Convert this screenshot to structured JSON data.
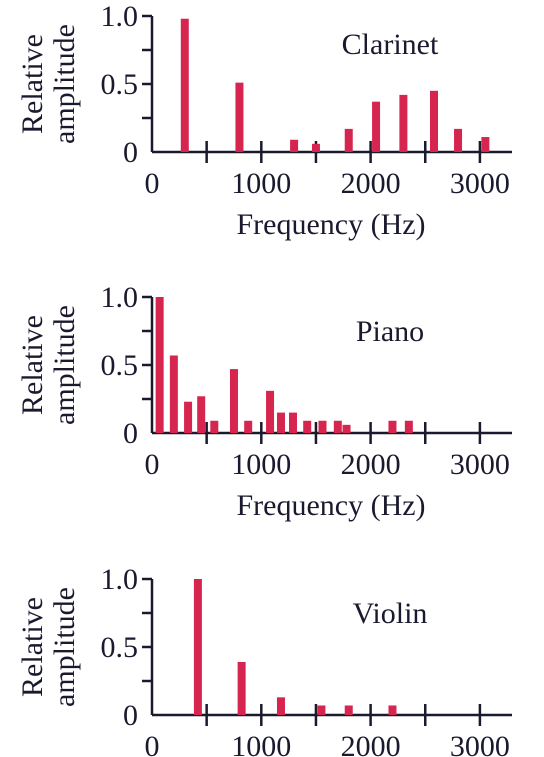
{
  "colors": {
    "bar": "#d6264f",
    "axis": "#1a1a2e"
  },
  "chart_data": [
    {
      "type": "bar",
      "title": "Clarinet",
      "ylabel_line1": "Relative",
      "ylabel_line2": "amplitude",
      "xlabel": "Frequency (Hz)",
      "xlim": [
        0,
        3300
      ],
      "ylim": [
        0,
        1.0
      ],
      "x_ticks": [
        "0",
        "1000",
        "2000",
        "3000"
      ],
      "y_ticks": [
        "0",
        "0.5",
        "1.0"
      ],
      "grid": false,
      "x": [
        300,
        800,
        1300,
        1500,
        1800,
        2050,
        2300,
        2580,
        2800,
        3050
      ],
      "values": [
        0.98,
        0.51,
        0.09,
        0.06,
        0.17,
        0.37,
        0.42,
        0.45,
        0.17,
        0.11
      ]
    },
    {
      "type": "bar",
      "title": "Piano",
      "ylabel_line1": "Relative",
      "ylabel_line2": "amplitude",
      "xlabel": "Frequency (Hz)",
      "xlim": [
        0,
        3300
      ],
      "ylim": [
        0,
        1.0
      ],
      "x_ticks": [
        "0",
        "1000",
        "2000",
        "3000"
      ],
      "y_ticks": [
        "0",
        "0.5",
        "1.0"
      ],
      "grid": false,
      "x": [
        70,
        200,
        330,
        450,
        570,
        750,
        880,
        1080,
        1180,
        1290,
        1420,
        1560,
        1700,
        1780,
        2200,
        2350
      ],
      "values": [
        1.0,
        0.57,
        0.23,
        0.27,
        0.09,
        0.47,
        0.09,
        0.31,
        0.15,
        0.15,
        0.09,
        0.09,
        0.09,
        0.06,
        0.09,
        0.09
      ]
    },
    {
      "type": "bar",
      "title": "Violin",
      "ylabel_line1": "Relative",
      "ylabel_line2": "amplitude",
      "xlabel": "",
      "xlim": [
        0,
        3300
      ],
      "ylim": [
        0,
        1.0
      ],
      "x_ticks": [
        "0",
        "1000",
        "2000",
        "3000"
      ],
      "y_ticks": [
        "0",
        "0.5",
        "1.0"
      ],
      "grid": false,
      "x": [
        420,
        820,
        1180,
        1550,
        1800,
        2200
      ],
      "values": [
        1.0,
        0.39,
        0.13,
        0.07,
        0.07,
        0.07
      ]
    }
  ]
}
